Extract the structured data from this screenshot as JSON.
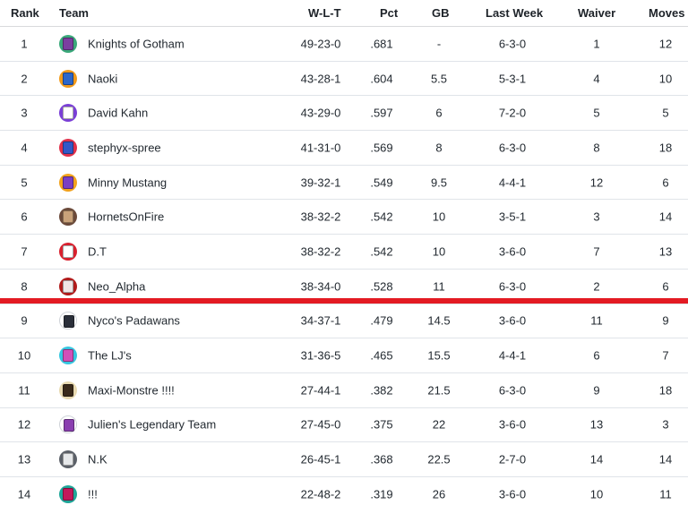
{
  "header": {
    "rank": "Rank",
    "team": "Team",
    "wlt": "W-L-T",
    "pct": "Pct",
    "gb": "GB",
    "last_week": "Last Week",
    "waiver": "Waiver",
    "moves": "Moves"
  },
  "teams": [
    {
      "rank": "1",
      "name": "Knights of Gotham",
      "wlt": "49-23-0",
      "pct": ".681",
      "gb": "-",
      "last_week": "6-3-0",
      "waiver": "1",
      "moves": "12",
      "logo_bg": "#3aa87a",
      "logo_fg": "#7b3fa0"
    },
    {
      "rank": "2",
      "name": "Naoki",
      "wlt": "43-28-1",
      "pct": ".604",
      "gb": "5.5",
      "last_week": "5-3-1",
      "waiver": "4",
      "moves": "10",
      "logo_bg": "#f29a1a",
      "logo_fg": "#2d67c9"
    },
    {
      "rank": "3",
      "name": "David Kahn",
      "wlt": "43-29-0",
      "pct": ".597",
      "gb": "6",
      "last_week": "7-2-0",
      "waiver": "5",
      "moves": "5",
      "logo_bg": "#7a3fd6",
      "logo_fg": "#ffffff"
    },
    {
      "rank": "4",
      "name": "stephyx-spree",
      "wlt": "41-31-0",
      "pct": ".569",
      "gb": "8",
      "last_week": "6-3-0",
      "waiver": "8",
      "moves": "18",
      "logo_bg": "#e0304b",
      "logo_fg": "#3158c8"
    },
    {
      "rank": "5",
      "name": "Minny Mustang",
      "wlt": "39-32-1",
      "pct": ".549",
      "gb": "9.5",
      "last_week": "4-4-1",
      "waiver": "12",
      "moves": "6",
      "logo_bg": "#f2a21c",
      "logo_fg": "#7b3fc4"
    },
    {
      "rank": "6",
      "name": "HornetsOnFire",
      "wlt": "38-32-2",
      "pct": ".542",
      "gb": "10",
      "last_week": "3-5-1",
      "waiver": "3",
      "moves": "14",
      "logo_bg": "#6b4a3a",
      "logo_fg": "#c9a27a"
    },
    {
      "rank": "7",
      "name": "D.T",
      "wlt": "38-32-2",
      "pct": ".542",
      "gb": "10",
      "last_week": "3-6-0",
      "waiver": "7",
      "moves": "13",
      "logo_bg": "#d8202e",
      "logo_fg": "#ffffff"
    },
    {
      "rank": "8",
      "name": "Neo_Alpha",
      "wlt": "38-34-0",
      "pct": ".528",
      "gb": "11",
      "last_week": "6-3-0",
      "waiver": "2",
      "moves": "6",
      "logo_bg": "#b01b1b",
      "logo_fg": "#f0e6e6"
    },
    {
      "rank": "9",
      "name": "Nyco's Padawans",
      "wlt": "34-37-1",
      "pct": ".479",
      "gb": "14.5",
      "last_week": "3-6-0",
      "waiver": "11",
      "moves": "9",
      "logo_bg": "#ffffff",
      "logo_fg": "#2a2f3a"
    },
    {
      "rank": "10",
      "name": "The LJ's",
      "wlt": "31-36-5",
      "pct": ".465",
      "gb": "15.5",
      "last_week": "4-4-1",
      "waiver": "6",
      "moves": "7",
      "logo_bg": "#36c6e0",
      "logo_fg": "#d24fb8"
    },
    {
      "rank": "11",
      "name": "Maxi-Monstre !!!!",
      "wlt": "27-44-1",
      "pct": ".382",
      "gb": "21.5",
      "last_week": "6-3-0",
      "waiver": "9",
      "moves": "18",
      "logo_bg": "#e8d9b0",
      "logo_fg": "#3a2a1a"
    },
    {
      "rank": "12",
      "name": "Julien's Legendary Team",
      "wlt": "27-45-0",
      "pct": ".375",
      "gb": "22",
      "last_week": "3-6-0",
      "waiver": "13",
      "moves": "3",
      "logo_bg": "#ffffff",
      "logo_fg": "#8a3fb0"
    },
    {
      "rank": "13",
      "name": "N.K",
      "wlt": "26-45-1",
      "pct": ".368",
      "gb": "22.5",
      "last_week": "2-7-0",
      "waiver": "14",
      "moves": "14",
      "logo_bg": "#5b6068",
      "logo_fg": "#e6e8ea"
    },
    {
      "rank": "14",
      "name": "!!!",
      "wlt": "22-48-2",
      "pct": ".319",
      "gb": "26",
      "last_week": "3-6-0",
      "waiver": "10",
      "moves": "11",
      "logo_bg": "#1ea598",
      "logo_fg": "#c2185b"
    }
  ],
  "playoff_cutoff_after_rank": 8,
  "colors": {
    "playoff_line": "#e31b23",
    "row_border": "#e0e4e9",
    "text": "#232a31"
  }
}
